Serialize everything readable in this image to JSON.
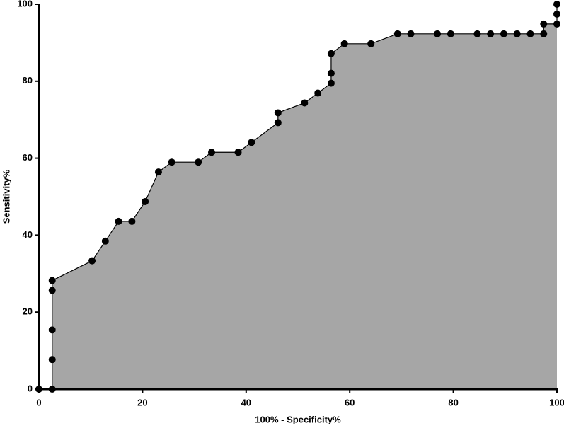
{
  "chart_data": {
    "type": "area",
    "x_label": "100% - Specificity%",
    "y_label": "Sensitivity%",
    "x": [
      0,
      2.56,
      2.56,
      2.56,
      2.56,
      2.56,
      10.26,
      12.82,
      15.38,
      17.95,
      20.51,
      23.08,
      25.64,
      30.77,
      33.33,
      38.46,
      41.03,
      46.15,
      46.15,
      51.28,
      53.85,
      56.41,
      56.41,
      56.41,
      58.97,
      64.1,
      69.23,
      71.79,
      76.92,
      79.49,
      84.62,
      87.18,
      89.74,
      92.31,
      94.87,
      97.44,
      97.44,
      100,
      100,
      100
    ],
    "values": [
      0,
      0,
      7.69,
      15.38,
      25.64,
      28.21,
      33.33,
      38.46,
      43.59,
      43.59,
      48.72,
      56.41,
      58.97,
      58.97,
      61.54,
      61.54,
      64.1,
      69.23,
      71.79,
      74.36,
      76.92,
      79.49,
      82.05,
      87.18,
      89.74,
      89.74,
      92.31,
      92.31,
      92.31,
      92.31,
      92.31,
      92.31,
      92.31,
      92.31,
      92.31,
      92.31,
      94.87,
      94.87,
      97.44,
      100
    ],
    "color": "#a6a6a6",
    "line_color": "#000000",
    "xlim": [
      0,
      100
    ],
    "xticks": [
      0,
      20,
      40,
      60,
      80,
      100
    ],
    "ylim": [
      0,
      100
    ],
    "yticks": [
      0,
      20,
      40,
      60,
      80,
      100
    ]
  }
}
